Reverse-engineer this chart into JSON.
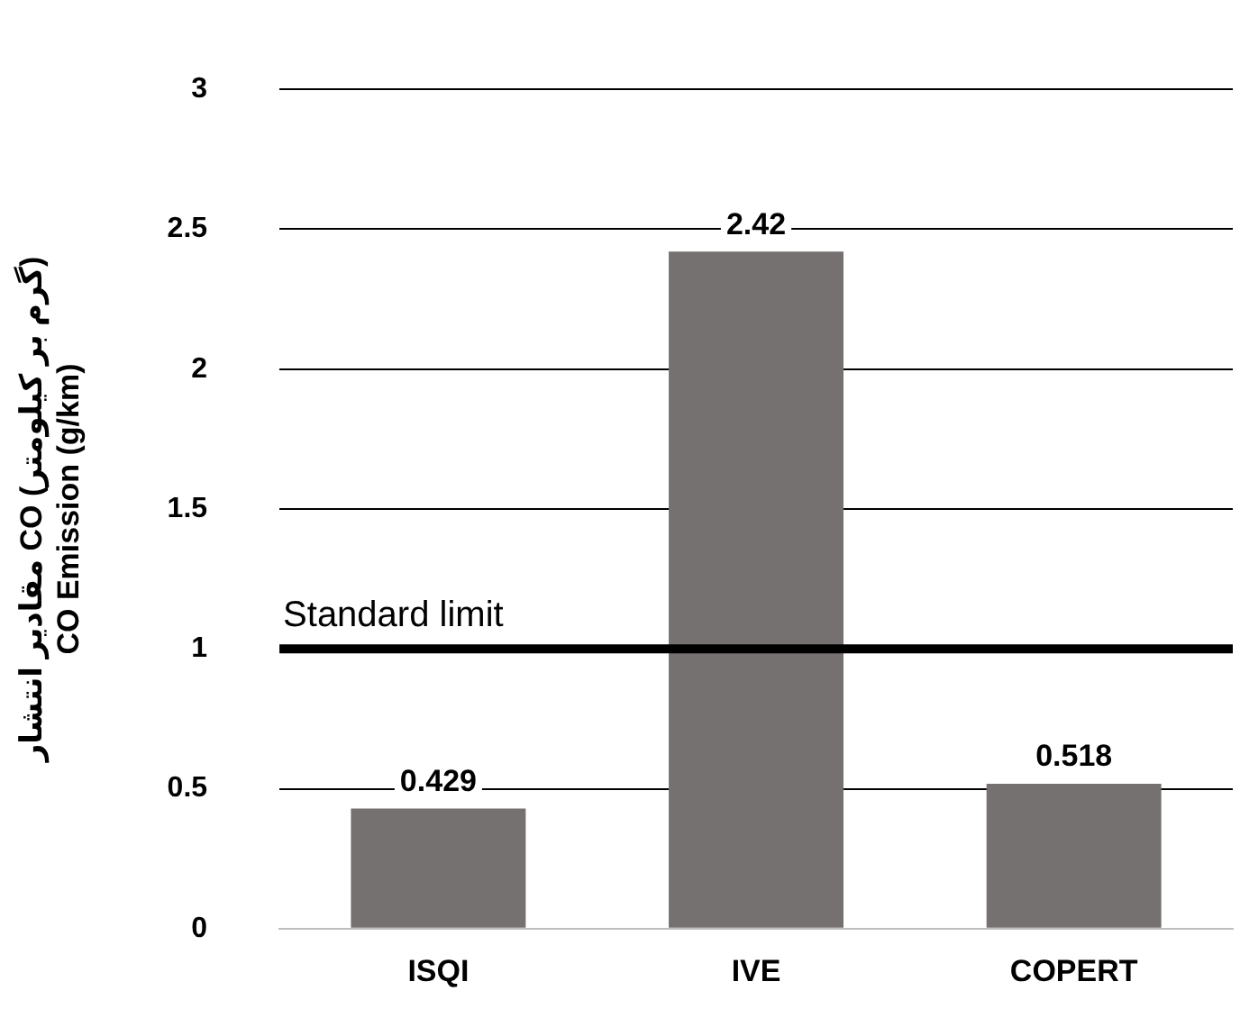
{
  "chart_data": {
    "type": "bar",
    "ylabel": "مقادیر انتشار CO (گرم بر کیلومتر)\nCO Emission (g/km)",
    "categories": [
      "ISQI",
      "IVE",
      "COPERT"
    ],
    "values": [
      0.429,
      2.42,
      0.518
    ],
    "color": "#767171",
    "ylim": [
      0,
      3
    ],
    "yticks": [
      0,
      0.5,
      1,
      1.5,
      2,
      2.5,
      3
    ],
    "grid": "y",
    "data_labels": true,
    "legend": false,
    "ref_lines": [
      {
        "axis": "y",
        "value": 1,
        "label": "Standard limit",
        "color": "#000000"
      }
    ]
  }
}
